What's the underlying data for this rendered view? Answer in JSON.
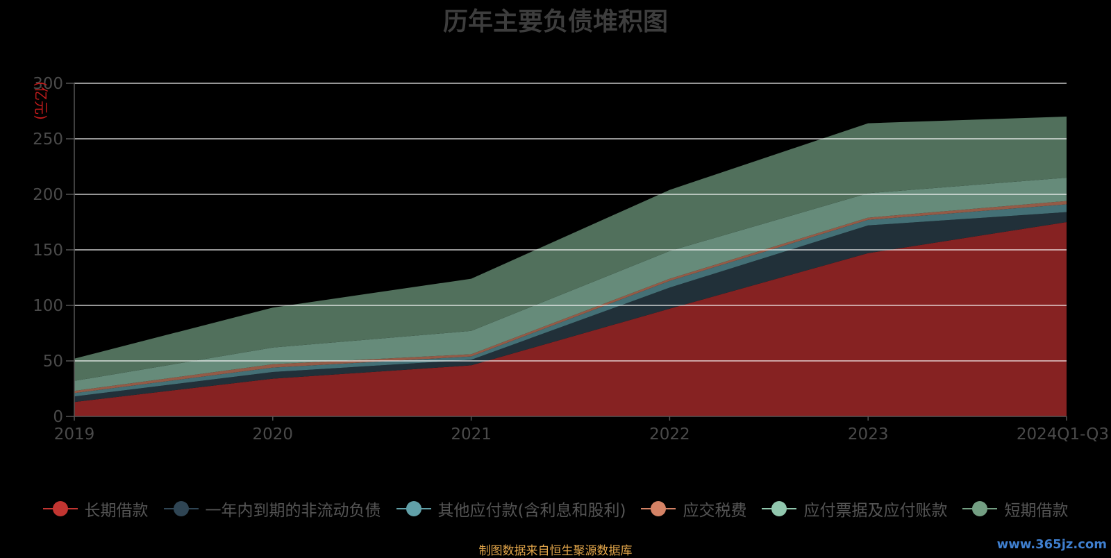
{
  "chart_data": {
    "type": "area",
    "stacked": true,
    "title": "历年主要负债堆积图",
    "unit_label": "(亿元)",
    "categories": [
      "2019",
      "2020",
      "2021",
      "2022",
      "2023",
      "2024Q1-Q3"
    ],
    "ylim": [
      0,
      300
    ],
    "yticks": [
      "0",
      "50",
      "100",
      "150",
      "200",
      "250",
      "300"
    ],
    "grid": true,
    "legend_position": "bottom",
    "series": [
      {
        "name": "长期借款",
        "color": "#c23531",
        "fill": "#862222",
        "values": [
          13,
          34,
          46,
          97,
          147,
          175
        ]
      },
      {
        "name": "一年内到期的非流动负债",
        "color": "#2f4554",
        "fill": "#213039",
        "values": [
          5,
          6,
          5,
          19,
          25,
          9
        ]
      },
      {
        "name": "其他应付款(含利息和股利)",
        "color": "#61a0a8",
        "fill": "#447076",
        "values": [
          3,
          4,
          3,
          6,
          5,
          7
        ]
      },
      {
        "name": "应交税费",
        "color": "#d48265",
        "fill": "#945b47",
        "values": [
          2,
          3,
          2,
          2,
          2,
          3
        ]
      },
      {
        "name": "应付票据及应付账款",
        "color": "#91c7ae",
        "fill": "#668b7a",
        "values": [
          9,
          15,
          21,
          25,
          22,
          21
        ]
      },
      {
        "name": "短期借款",
        "color": "#749f83",
        "fill": "#51705c",
        "values": [
          20,
          36,
          47,
          55,
          63,
          55
        ]
      }
    ]
  },
  "footer": {
    "source": "制图数据来自恒生聚源数据库",
    "watermark": "www.365jz.com"
  }
}
